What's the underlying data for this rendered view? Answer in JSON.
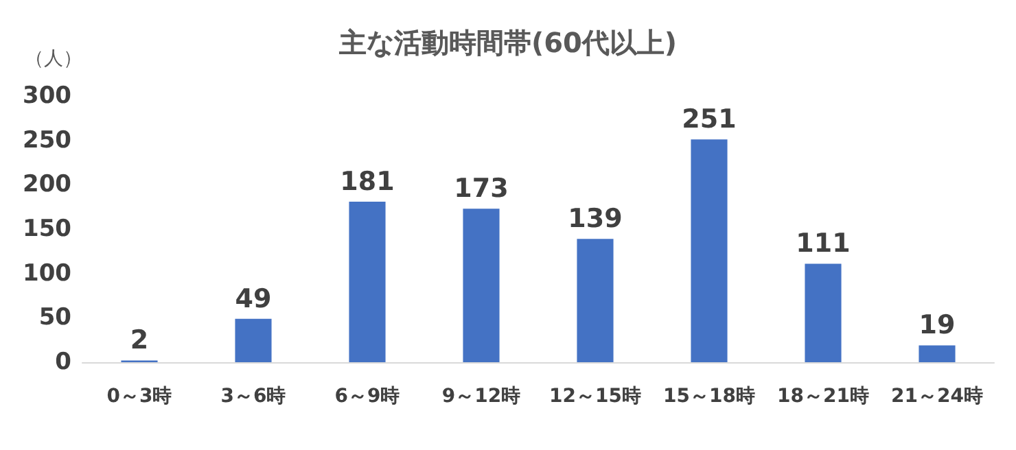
{
  "chart_data": {
    "type": "bar",
    "title": "主な活動時間帯(60代以上)",
    "ylabel": "（人）",
    "categories": [
      "0～3時",
      "3～6時",
      "6～9時",
      "9～12時",
      "12～15時",
      "15～18時",
      "18～21時",
      "21～24時"
    ],
    "values": [
      2,
      49,
      181,
      173,
      139,
      251,
      111,
      19
    ],
    "color": "#4472c4",
    "ylim": [
      0,
      300
    ],
    "yticks": [
      0,
      50,
      100,
      150,
      200,
      250,
      300
    ],
    "grid": false,
    "data_labels": true
  }
}
